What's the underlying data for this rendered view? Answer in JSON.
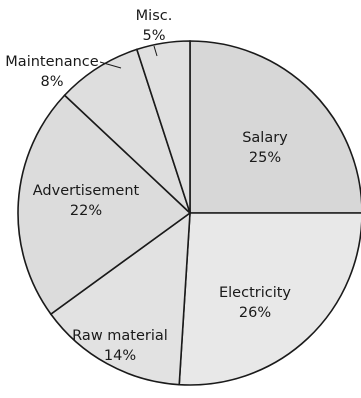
{
  "chart_data": {
    "type": "pie",
    "title": "",
    "start_angle_deg": 0,
    "direction": "clockwise",
    "slices": [
      {
        "name": "Salary",
        "value": 25,
        "pct_label": "25%",
        "color": "#d7d7d7"
      },
      {
        "name": "Electricity",
        "value": 26,
        "pct_label": "26%",
        "color": "#e8e8e8"
      },
      {
        "name": "Raw material",
        "value": 14,
        "pct_label": "14%",
        "color": "#e2e2e2"
      },
      {
        "name": "Advertisement",
        "value": 22,
        "pct_label": "22%",
        "color": "#dcdcdc"
      },
      {
        "name": "Maintenance",
        "value": 8,
        "pct_label": "8%",
        "color": "#dedede"
      },
      {
        "name": "Misc.",
        "value": 5,
        "pct_label": "5%",
        "color": "#e0e0e0"
      }
    ]
  }
}
